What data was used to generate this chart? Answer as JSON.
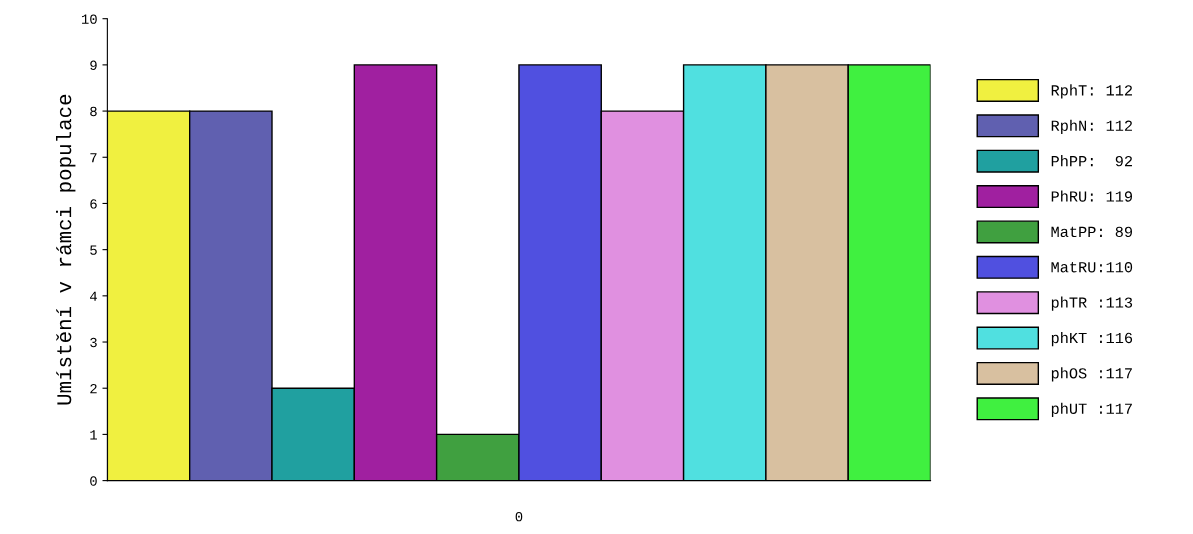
{
  "chart_data": {
    "type": "bar",
    "ylabel": "Umístění v rámci populace",
    "categories": [
      "0"
    ],
    "ylim": [
      0,
      10
    ],
    "yticks": [
      0,
      1,
      2,
      3,
      4,
      5,
      6,
      7,
      8,
      9,
      10
    ],
    "grid": false,
    "legend": "right",
    "series": [
      {
        "name": "RphT: 112",
        "color": "#f0f040",
        "values": [
          8
        ]
      },
      {
        "name": "RphN: 112",
        "color": "#6060b0",
        "values": [
          8
        ]
      },
      {
        "name": "PhPP:  92",
        "color": "#20a0a0",
        "values": [
          2
        ]
      },
      {
        "name": "PhRU: 119",
        "color": "#a020a0",
        "values": [
          9
        ]
      },
      {
        "name": "MatPP: 89",
        "color": "#40a040",
        "values": [
          1
        ]
      },
      {
        "name": "MatRU:110",
        "color": "#5050e0",
        "values": [
          9
        ]
      },
      {
        "name": "phTR :113",
        "color": "#e090e0",
        "values": [
          8
        ]
      },
      {
        "name": "phKT :116",
        "color": "#50e0e0",
        "values": [
          9
        ]
      },
      {
        "name": "phOS :117",
        "color": "#d8c0a0",
        "values": [
          9
        ]
      },
      {
        "name": "phUT :117",
        "color": "#40f040",
        "values": [
          9
        ]
      }
    ]
  }
}
